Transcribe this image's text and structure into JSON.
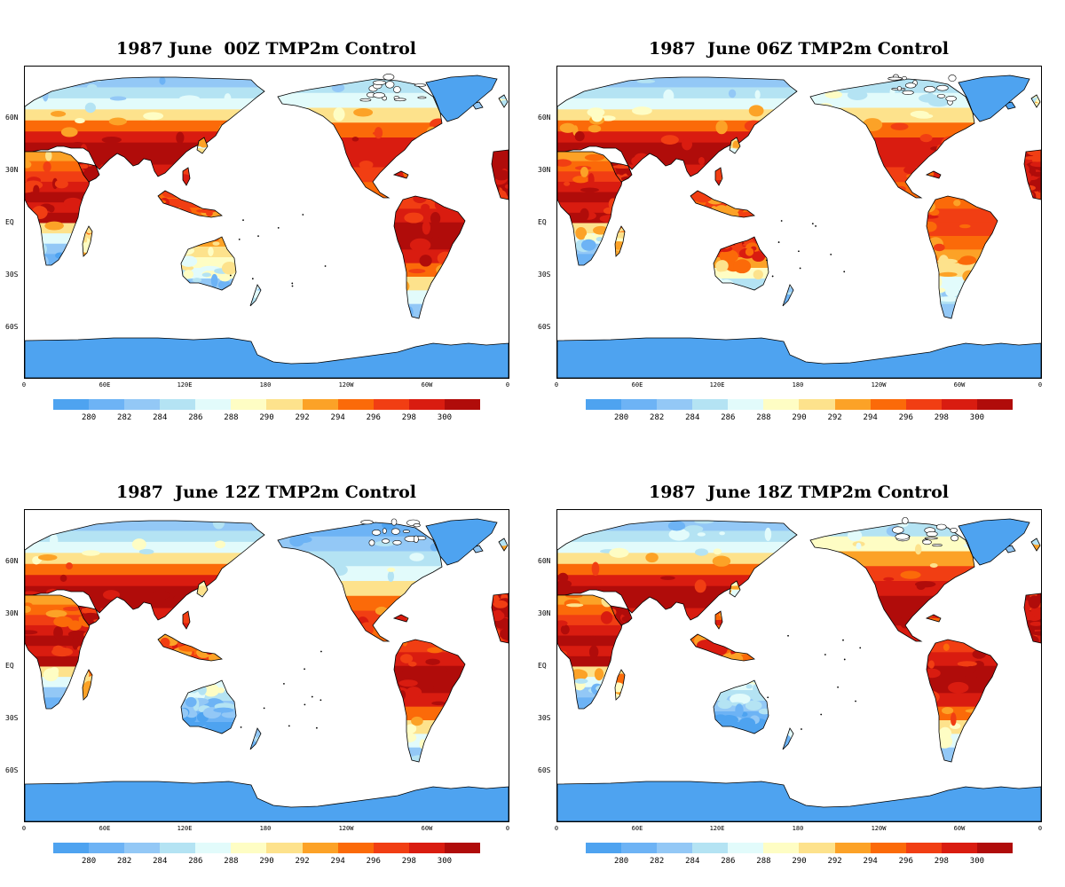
{
  "panels": [
    {
      "title": "1987 June  00Z TMP2m Control",
      "variant": 0
    },
    {
      "title": "1987  June 06Z TMP2m Control",
      "variant": 1
    },
    {
      "title": "1987  June 12Z TMP2m Control",
      "variant": 2
    },
    {
      "title": "1987  June 18Z TMP2m Control",
      "variant": 3
    }
  ],
  "lat_labels": [
    "60N",
    "30N",
    "EQ",
    "30S",
    "60S"
  ],
  "lon_labels": [
    "0",
    "60E",
    "120E",
    "180",
    "120W",
    "60W",
    "0"
  ],
  "colorbar": {
    "labels": [
      "280",
      "282",
      "284",
      "286",
      "288",
      "290",
      "292",
      "294",
      "296",
      "298",
      "300"
    ],
    "colors": [
      "#4ea3f0",
      "#6db3f5",
      "#93c8f6",
      "#b4e3f3",
      "#e2fbfb",
      "#fefdc4",
      "#fde28c",
      "#fca227",
      "#fb6a09",
      "#f13e13",
      "#d91c10",
      "#b00c0a"
    ]
  },
  "colors": {
    "ocean": "#ffffff",
    "antarctica": "#4ea3f0",
    "greenland": "#4ea3f0",
    "coast": "#000000"
  }
}
